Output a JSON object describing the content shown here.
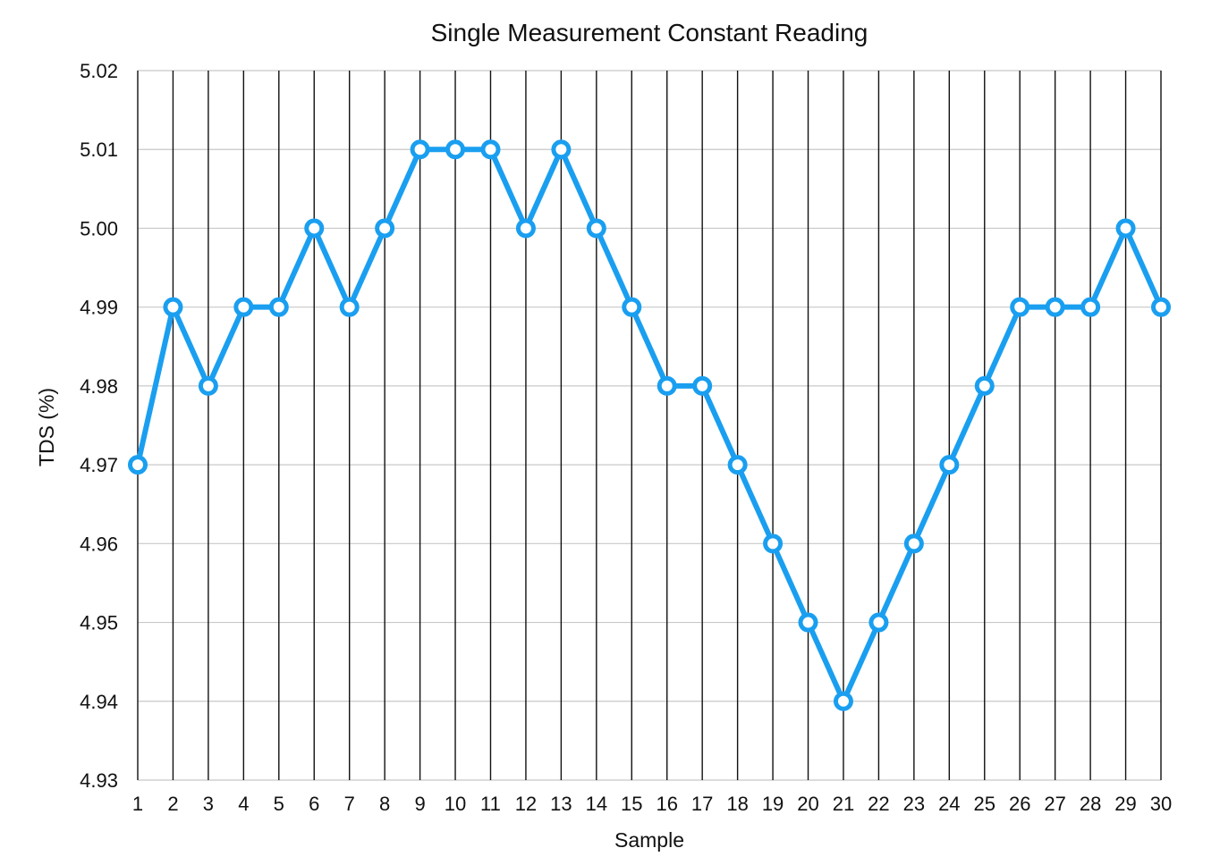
{
  "chart_data": {
    "type": "line",
    "title": "Single Measurement Constant Reading",
    "xlabel": "Sample",
    "ylabel": "TDS (%)",
    "categories": [
      "1",
      "2",
      "3",
      "4",
      "5",
      "6",
      "7",
      "8",
      "9",
      "10",
      "11",
      "12",
      "13",
      "14",
      "15",
      "16",
      "17",
      "18",
      "19",
      "20",
      "21",
      "22",
      "23",
      "24",
      "25",
      "26",
      "27",
      "28",
      "29",
      "30"
    ],
    "series": [
      {
        "values": [
          4.97,
          4.99,
          4.98,
          4.99,
          4.99,
          5.0,
          4.99,
          5.0,
          5.01,
          5.01,
          5.01,
          5.0,
          5.01,
          5.0,
          4.99,
          4.98,
          4.98,
          4.97,
          4.96,
          4.95,
          4.94,
          4.95,
          4.96,
          4.97,
          4.98,
          4.99,
          4.99,
          4.99,
          5.0,
          4.99
        ],
        "color": "#1a9ff0"
      }
    ],
    "ylim": [
      4.93,
      5.02
    ],
    "yticks": [
      "4.93",
      "4.94",
      "4.95",
      "4.96",
      "4.97",
      "4.98",
      "4.99",
      "5.00",
      "5.01",
      "5.02"
    ],
    "grid": {
      "horizontal": true,
      "vertical": true
    },
    "legend": "none"
  }
}
